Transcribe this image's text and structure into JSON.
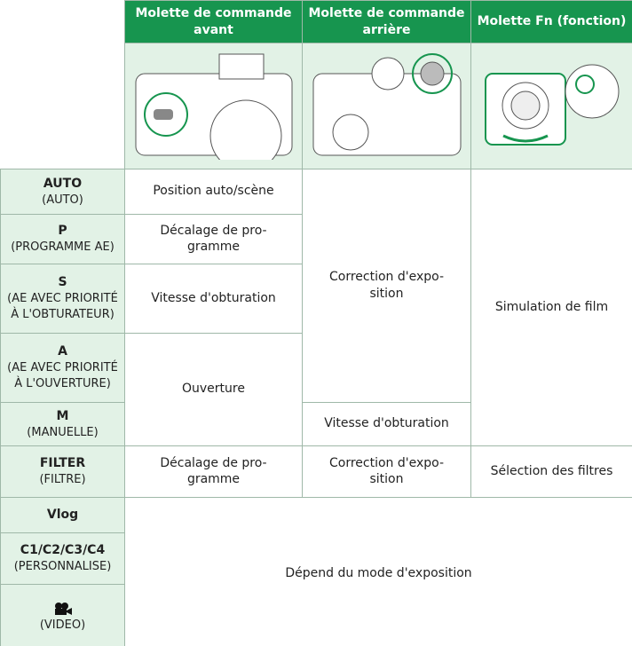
{
  "header": {
    "columns": [
      "Molette de commande avant",
      "Molette de commande arrière",
      "Molette Fn (fonction)"
    ]
  },
  "modes": [
    {
      "name": "AUTO",
      "desc": "(AUTO)"
    },
    {
      "name": "P",
      "desc": "(PROGRAMME AE)"
    },
    {
      "name": "S",
      "desc": "(AE AVEC PRIORITÉ À L'OBTURATEUR)"
    },
    {
      "name": "A",
      "desc": "(AE AVEC PRIORITÉ À L'OUVERTURE)"
    },
    {
      "name": "M",
      "desc": "(MANUELLE)"
    },
    {
      "name": "FILTER",
      "desc": "(FILTRE)"
    },
    {
      "name": "Vlog"
    },
    {
      "name": "C1/C2/C3/C4",
      "desc": "(PERSONNALISE)"
    },
    {
      "desc": "(VIDEO)"
    }
  ],
  "cells": {
    "auto_front": "Position auto/scène",
    "p_front": [
      "Décalage de pro-",
      "gramme"
    ],
    "s_front": "Vitesse d'obturation",
    "am_front": "Ouverture",
    "filter_front": [
      "Décalage de pro-",
      "gramme"
    ],
    "pasa_rear": [
      "Correction d'expo-",
      "sition"
    ],
    "m_rear": "Vitesse d'obturation",
    "filter_rear": [
      "Correction d'expo-",
      "sition"
    ],
    "all_fn": "Simulation de film",
    "filter_fn": "Sélection des filtres",
    "other": "Dépend du mode d'exposition"
  }
}
